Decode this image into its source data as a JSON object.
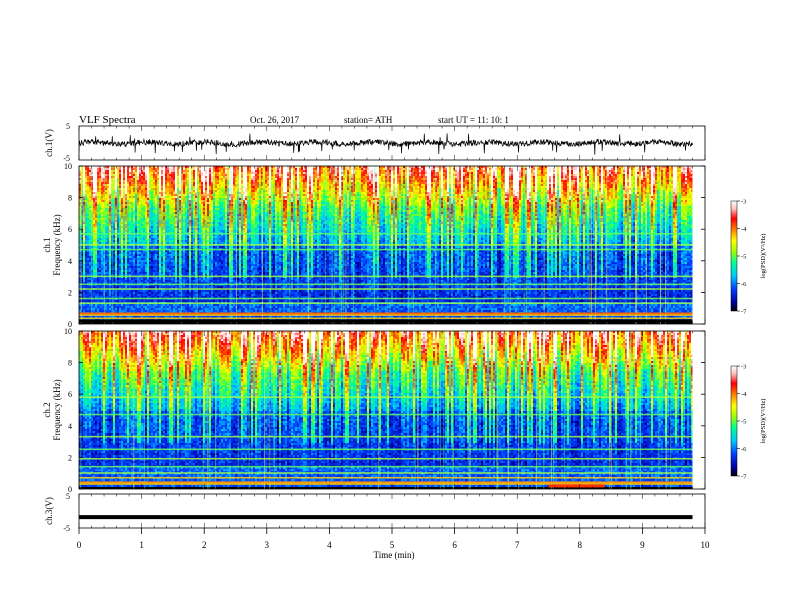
{
  "header": {
    "title": "VLF  Spectra",
    "date": "Oct. 26, 2017",
    "station": "station= ATH",
    "start": "start  UT  =     11: 10: 1"
  },
  "chart_data": [
    {
      "type": "line",
      "panel": "ch1-waveform",
      "ylabel": "ch.1(V)",
      "yticks": [
        "5",
        "-5"
      ],
      "ylim": [
        -5,
        5
      ],
      "xlim": [
        0,
        10
      ],
      "description_values": {
        "baseline": 0,
        "noise_amplitude": 1.2,
        "spike_min": -3.5,
        "data_end_min": 9.8
      },
      "color": "#000000"
    },
    {
      "type": "heatmap",
      "panel": "ch1-spectrogram",
      "ylabel": "ch.1\nFrequency (kHz)",
      "ylabel_lines": [
        "ch.1",
        "Frequency  (kHz)"
      ],
      "yticks": [
        "0",
        "2",
        "4",
        "6",
        "8",
        "10"
      ],
      "ylim": [
        0,
        10
      ],
      "xlim": [
        0,
        9.8
      ],
      "colorbar": {
        "label": "log(PSD)(V²/Hz)",
        "ticks": [
          "-3",
          "-4",
          "-5",
          "-6",
          "-7"
        ],
        "range": [
          -7,
          -3
        ],
        "colors": [
          "#000000",
          "#0000a0",
          "#0040ff",
          "#00c8ff",
          "#00ff90",
          "#a0ff00",
          "#ffff00",
          "#ff8000",
          "#ff0000",
          "#ffc0c0",
          "#ffffff"
        ]
      },
      "bands_khz": [
        0.35,
        0.55,
        1.3,
        1.6,
        2.2,
        2.5,
        3.0,
        4.7,
        5.0,
        5.7
      ],
      "gap_freq_khz": 0.1
    },
    {
      "type": "heatmap",
      "panel": "ch2-spectrogram",
      "ylabel": "ch.2\nFrequency (kHz)",
      "ylabel_lines": [
        "ch.2",
        "Frequency  (kHz)"
      ],
      "yticks": [
        "0",
        "2",
        "4",
        "6",
        "8",
        "10"
      ],
      "ylim": [
        0,
        10
      ],
      "xlim": [
        0,
        9.8
      ],
      "colorbar": {
        "label": "log(PSD)(V²/Hz)",
        "ticks": [
          "-3",
          "-4",
          "-5",
          "-6",
          "-7"
        ],
        "range": [
          -7,
          -3
        ]
      },
      "bands_khz": [
        0.3,
        0.7,
        1.0,
        1.4,
        1.9,
        2.5,
        3.3,
        4.7,
        5.8
      ],
      "hot_segment_khz": 0.1,
      "hot_segment_min": [
        7.5,
        8.4
      ]
    },
    {
      "type": "line",
      "panel": "ch3-waveform",
      "ylabel": "ch.3(V)",
      "yticks": [
        "5",
        "-5"
      ],
      "ylim": [
        -5,
        5
      ],
      "xlim": [
        0,
        10
      ],
      "xlabel": "Time  (min)",
      "xticks": [
        "0",
        "1",
        "2",
        "3",
        "4",
        "5",
        "6",
        "7",
        "8",
        "9",
        "10"
      ],
      "description_values": {
        "level": -1.8
      },
      "color": "#000000"
    }
  ]
}
